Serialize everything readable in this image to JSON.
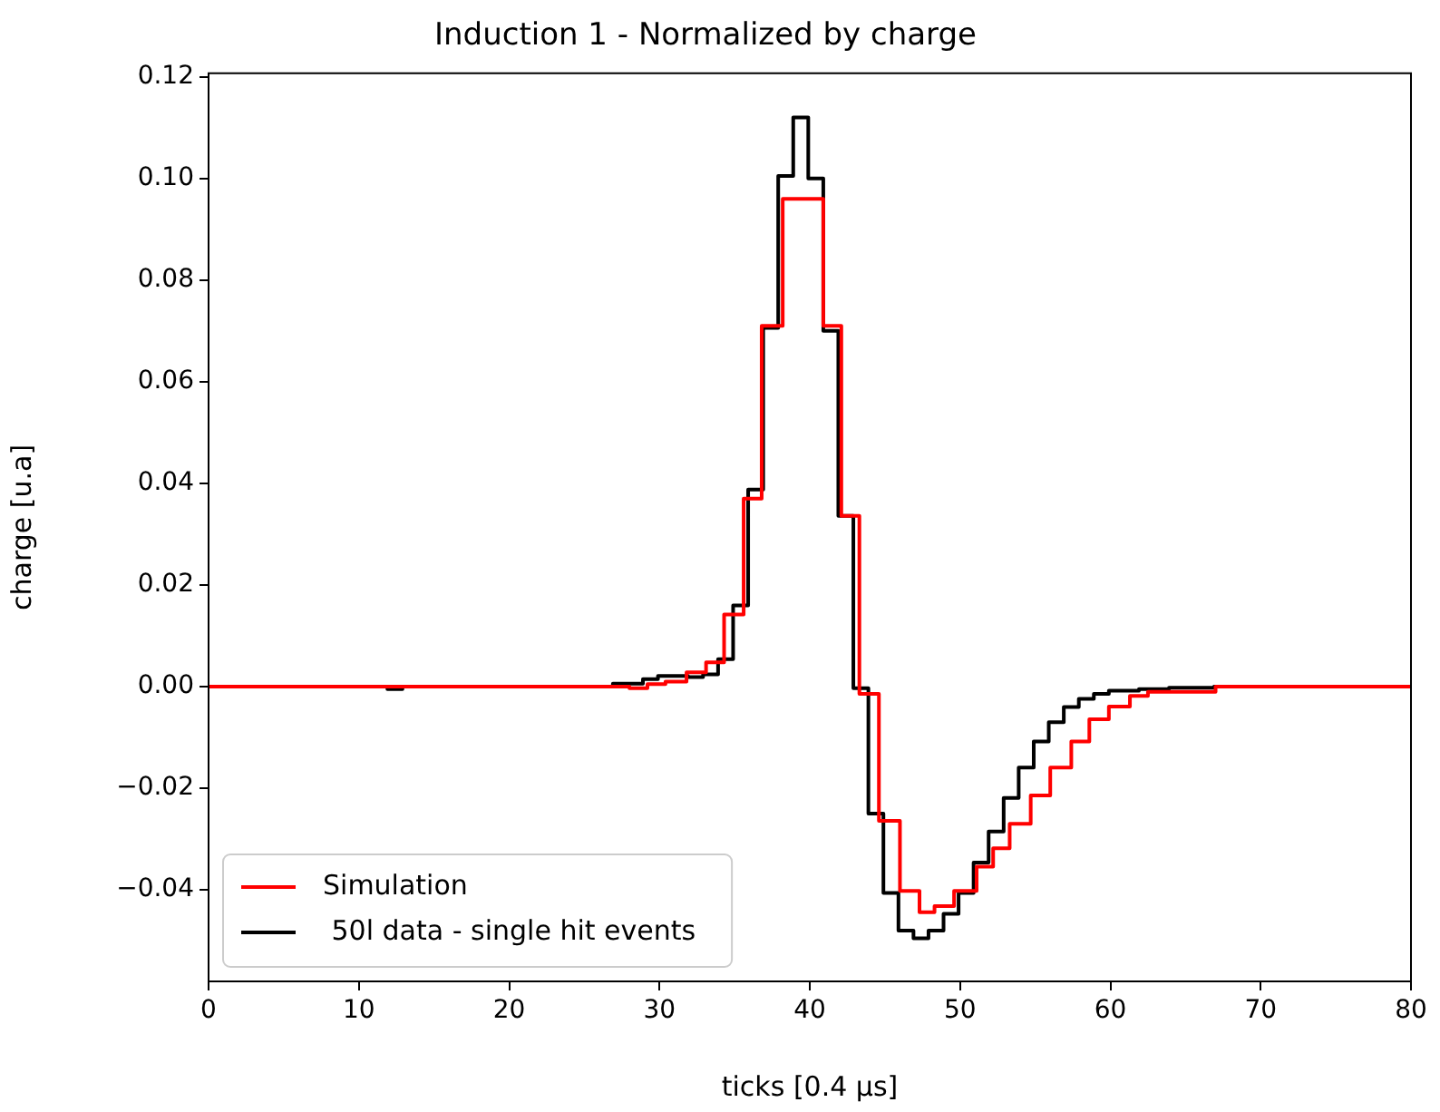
{
  "chart_data": {
    "type": "step",
    "title": "Induction 1 - Normalized by charge",
    "xlabel": "ticks [0.4 μs]",
    "ylabel": "charge [u.a]",
    "xlim": [
      0,
      80
    ],
    "xticks": [
      0,
      10,
      20,
      30,
      40,
      50,
      60,
      70,
      80
    ],
    "ylim": [
      -0.058,
      0.1207
    ],
    "yticks": [
      {
        "value": -0.04,
        "label": "−0.04"
      },
      {
        "value": -0.02,
        "label": "−0.02"
      },
      {
        "value": 0,
        "label": "0.00"
      },
      {
        "value": 0.02,
        "label": "0.02"
      },
      {
        "value": 0.04,
        "label": "0.04"
      },
      {
        "value": 0.06,
        "label": "0.06"
      },
      {
        "value": 0.08,
        "label": "0.08"
      },
      {
        "value": 0.1,
        "label": "0.10"
      },
      0.12
    ],
    "grid": false,
    "legend": "bottom left",
    "series": [
      {
        "name": "Simulation",
        "color": "#ff0000",
        "x": [
          0,
          28.0,
          29.2,
          30.4,
          31.8,
          33.1,
          34.3,
          35.6,
          36.8,
          38.2,
          40.9,
          42.1,
          43.3,
          44.6,
          46.0,
          47.3,
          48.3,
          49.6,
          51.1,
          52.2,
          53.3,
          54.7,
          56.0,
          57.4,
          58.6,
          59.9,
          61.3,
          62.5,
          67,
          80
        ],
        "values": [
          0,
          -0.0003,
          0.0005,
          0.001,
          0.0028,
          0.0048,
          0.0142,
          0.037,
          0.071,
          0.096,
          0.071,
          0.0336,
          -0.0014,
          -0.0264,
          -0.0402,
          -0.0444,
          -0.0432,
          -0.0402,
          -0.0354,
          -0.0318,
          -0.027,
          -0.0214,
          -0.0159,
          -0.0108,
          -0.0064,
          -0.0039,
          -0.0018,
          -0.001,
          0,
          0
        ]
      },
      {
        "name": " 50l data - single hit events",
        "color": "#000000",
        "x": [
          0,
          11.9,
          12.9,
          26.9,
          28.9,
          29.9,
          31.9,
          32.9,
          33.9,
          34.9,
          35.9,
          36.9,
          37.9,
          38.9,
          39.9,
          40.9,
          41.9,
          42.9,
          43.9,
          44.9,
          45.9,
          46.9,
          47.9,
          48.9,
          49.9,
          50.9,
          51.9,
          52.9,
          53.9,
          54.9,
          55.9,
          56.9,
          57.9,
          58.9,
          59.9,
          61.9,
          63.9,
          66.9,
          80
        ],
        "values": [
          0,
          -0.0005,
          0,
          0.0006,
          0.0015,
          0.0021,
          0.0019,
          0.0024,
          0.0054,
          0.016,
          0.0388,
          0.0706,
          0.1005,
          0.112,
          0.1,
          0.07,
          0.0336,
          -0.0003,
          -0.025,
          -0.0406,
          -0.048,
          -0.0495,
          -0.048,
          -0.0447,
          -0.0406,
          -0.0346,
          -0.0285,
          -0.0219,
          -0.0159,
          -0.0108,
          -0.007,
          -0.004,
          -0.0024,
          -0.0014,
          -0.0008,
          -0.0005,
          -0.0002,
          0,
          0
        ]
      }
    ]
  }
}
